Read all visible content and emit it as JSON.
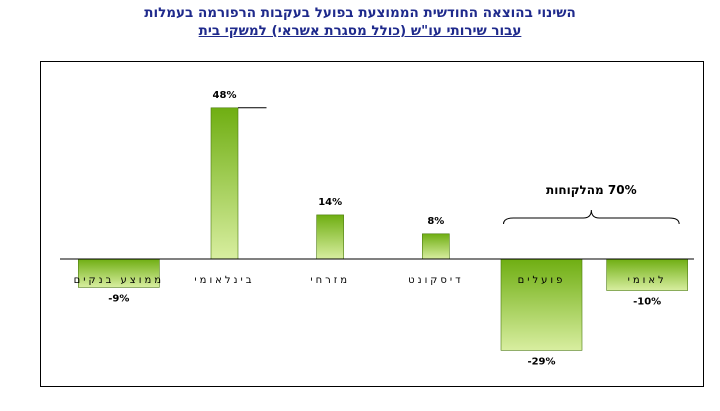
{
  "title": {
    "line1": "השינוי בהוצאה החודשית הממוצעת בפועל בעקבות הרפורמה בעמלות",
    "line2": "עבור שירותי עו\"ש (כולל מסגרת אשראי) למשקי בית"
  },
  "chart_data": {
    "type": "bar",
    "title": "השינוי בהוצאה החודשית הממוצעת בפועל בעקבות הרפורמה בעמלות עבור שירותי עו\"ש (כולל מסגרת אשראי) למשקי בית",
    "categories": [
      "ממוצע בנקים",
      "בינלאומי",
      "מזרחי",
      "דיסקונט",
      "פועלים",
      "לאומי"
    ],
    "values": [
      -9,
      48,
      14,
      8,
      -29,
      -10
    ],
    "value_labels": [
      "-9%",
      "48%",
      "14%",
      "8%",
      "-29%",
      "-10%"
    ],
    "ylim": [
      -35,
      55
    ],
    "xlabel": "",
    "ylabel": "",
    "grid": false,
    "annotation": "70% מהלקוחות",
    "colors": {
      "bar_top": "#6fae12",
      "bar_bottom": "#d8eea0",
      "stroke": "#4a7a0c"
    }
  }
}
